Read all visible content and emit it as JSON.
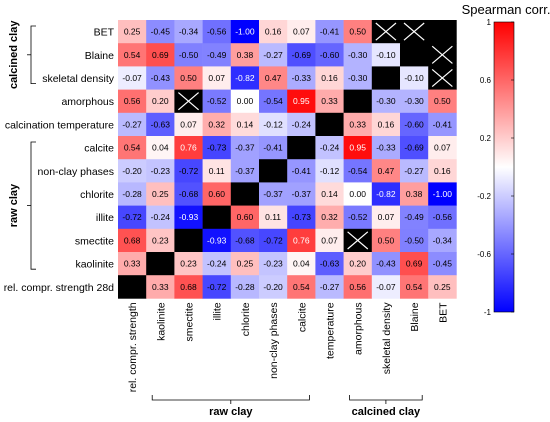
{
  "chart_data": {
    "type": "heatmap",
    "title": "",
    "colorbar": {
      "title": "Spearman corr.",
      "range": [
        -1,
        1
      ],
      "ticks": [
        "1",
        "0.6",
        "0.2",
        "-0.2",
        "-0.6",
        "-1"
      ],
      "tick_values": [
        1,
        0.6,
        0.2,
        -0.2,
        -0.6,
        -1
      ],
      "colors": {
        "low": "#0000ff",
        "mid": "#ffffff",
        "high": "#ff0000"
      }
    },
    "rows": [
      "BET",
      "Blaine",
      "skeletal density",
      "amorphous",
      "calcination temperature",
      "calcite",
      "non-clay phases",
      "chlorite",
      "illite",
      "smectite",
      "kaolinite",
      "rel. compr. strength 28d"
    ],
    "columns": [
      "rel. compr. strength",
      "kaolinite",
      "smectite",
      "illite",
      "chlorite",
      "non-clay phases",
      "calcite",
      "temperature",
      "amorphous",
      "skeletal density",
      "Blaine",
      "BET"
    ],
    "values": [
      [
        0.25,
        -0.45,
        -0.34,
        -0.56,
        -1.0,
        0.16,
        0.07,
        -0.41,
        0.5,
        "X",
        "X",
        "B"
      ],
      [
        0.54,
        0.69,
        -0.5,
        -0.49,
        0.38,
        -0.27,
        -0.69,
        -0.6,
        -0.3,
        -0.1,
        "B",
        "X"
      ],
      [
        -0.07,
        -0.43,
        0.5,
        0.07,
        -0.82,
        0.47,
        -0.33,
        0.16,
        -0.3,
        "B",
        -0.1,
        "X"
      ],
      [
        0.56,
        0.2,
        "X",
        -0.52,
        0.0,
        -0.54,
        0.95,
        0.33,
        "B",
        -0.3,
        -0.3,
        0.5
      ],
      [
        -0.27,
        -0.63,
        0.07,
        0.32,
        0.14,
        -0.12,
        -0.24,
        "B",
        0.33,
        0.16,
        -0.6,
        -0.41
      ],
      [
        0.54,
        0.04,
        0.76,
        -0.73,
        -0.37,
        -0.41,
        "B",
        -0.24,
        0.95,
        -0.33,
        -0.69,
        0.07
      ],
      [
        -0.2,
        -0.23,
        -0.72,
        0.11,
        -0.37,
        "B",
        -0.41,
        -0.12,
        -0.54,
        0.47,
        -0.27,
        0.16
      ],
      [
        -0.28,
        0.25,
        -0.68,
        0.6,
        "B",
        -0.37,
        -0.37,
        0.14,
        0.0,
        -0.82,
        0.38,
        -1.0
      ],
      [
        -0.72,
        -0.24,
        -0.93,
        "B",
        0.6,
        0.11,
        -0.73,
        0.32,
        -0.52,
        0.07,
        -0.49,
        -0.56
      ],
      [
        0.68,
        0.23,
        "B",
        -0.93,
        -0.68,
        -0.72,
        0.76,
        0.07,
        "X",
        0.5,
        -0.5,
        -0.34
      ],
      [
        0.33,
        "B",
        0.23,
        -0.24,
        0.25,
        -0.23,
        0.04,
        -0.63,
        0.2,
        -0.43,
        0.69,
        -0.45
      ],
      [
        "B",
        0.33,
        0.68,
        -0.72,
        -0.28,
        -0.2,
        0.54,
        -0.27,
        0.56,
        -0.07,
        0.54,
        0.25
      ]
    ],
    "row_groups": [
      {
        "label": "calcined clay",
        "rows": [
          "BET",
          "skeletal density"
        ]
      },
      {
        "label": "raw clay",
        "rows": [
          "calcite",
          "kaolinite"
        ]
      }
    ],
    "column_groups": [
      {
        "label": "raw clay",
        "columns": [
          "kaolinite",
          "calcite"
        ]
      },
      {
        "label": "calcined clay",
        "columns": [
          "amorphous",
          "Blaine"
        ]
      }
    ]
  }
}
